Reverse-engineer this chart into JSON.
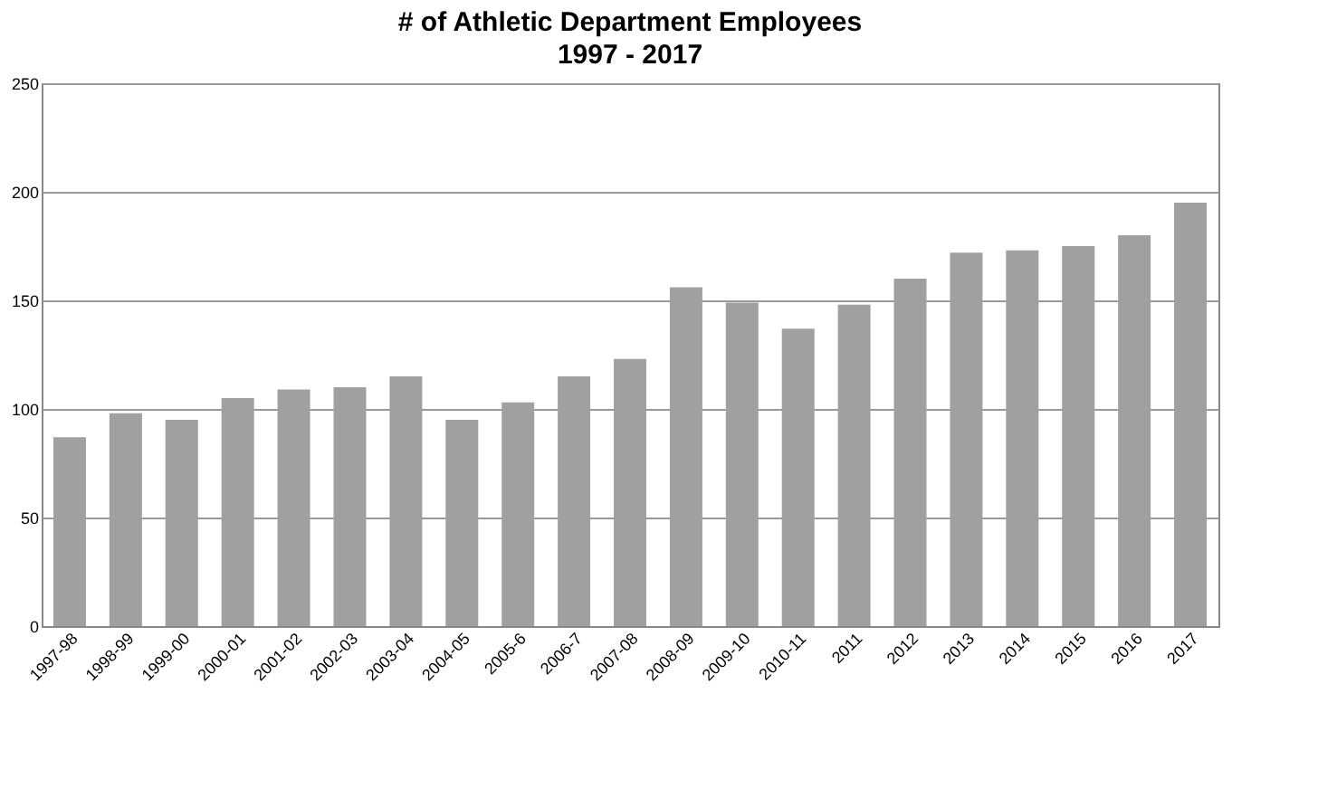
{
  "chart_data": {
    "type": "bar",
    "title": "# of Athletic Department Employees",
    "subtitle": "1997 - 2017",
    "categories": [
      "1997-98",
      "1998-99",
      "1999-00",
      "2000-01",
      "2001-02",
      "2002-03",
      "2003-04",
      "2004-05",
      "2005-6",
      "2006-7",
      "2007-08",
      "2008-09",
      "2009-10",
      "2010-11",
      "2011",
      "2012",
      "2013",
      "2014",
      "2015",
      "2016",
      "2017"
    ],
    "values": [
      87,
      98,
      95,
      105,
      109,
      110,
      115,
      95,
      103,
      115,
      123,
      156,
      149,
      137,
      148,
      160,
      172,
      173,
      175,
      180,
      195
    ],
    "color": "#a0a0a0",
    "ylim": [
      0,
      250
    ],
    "yticks": [
      0,
      50,
      100,
      150,
      200,
      250
    ],
    "grid": "y"
  }
}
